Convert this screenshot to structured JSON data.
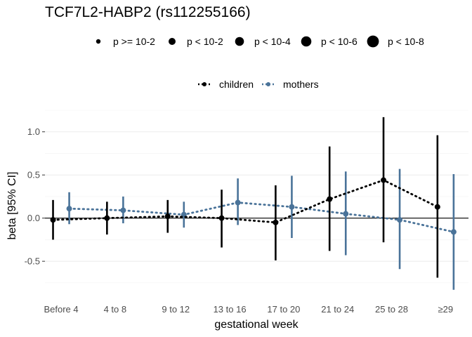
{
  "chart_data": {
    "type": "scatter",
    "title": "TCF7L2-HABP2 (rs112255166)",
    "xlabel": "gestational week",
    "ylabel": "beta [95% CI]",
    "categories": [
      "Before 4",
      "4 to 8",
      "9 to 12",
      "13 to 16",
      "17 to 20",
      "21 to 24",
      "25 to 28",
      "≥29"
    ],
    "x_positions": [
      2,
      6,
      10.5,
      14.5,
      18.5,
      22.5,
      26.5,
      30.5
    ],
    "xlim": [
      0.8,
      32.2
    ],
    "ylim": [
      -0.93,
      1.25
    ],
    "yticks": [
      -0.5,
      0.0,
      0.5,
      1.0
    ],
    "ytick_labels": [
      "-0.5",
      "0.0",
      "0.5",
      "1.0"
    ],
    "grid": true,
    "zero_line": true,
    "size_legend": {
      "labels": [
        "p >= 10-2",
        "p < 10-2",
        "p < 10-4",
        "p < 10-6",
        "p < 10-8"
      ],
      "placement": "top"
    },
    "series_legend": {
      "placement": "top"
    },
    "series": [
      {
        "name": "children",
        "color": "#000000",
        "line": "dotted",
        "beta": [
          -0.02,
          0.0,
          0.02,
          0.0,
          -0.05,
          0.22,
          0.44,
          0.13
        ],
        "lower": [
          -0.25,
          -0.19,
          -0.17,
          -0.34,
          -0.49,
          -0.38,
          -0.28,
          -0.69
        ],
        "upper": [
          0.21,
          0.19,
          0.21,
          0.33,
          0.38,
          0.83,
          1.17,
          0.96
        ]
      },
      {
        "name": "mothers",
        "color": "#4a7399",
        "line": "dotted",
        "beta": [
          0.11,
          0.09,
          0.04,
          0.18,
          0.13,
          0.05,
          -0.02,
          -0.16
        ],
        "lower": [
          -0.07,
          -0.06,
          -0.11,
          -0.08,
          -0.23,
          -0.43,
          -0.59,
          -0.83
        ],
        "upper": [
          0.3,
          0.25,
          0.19,
          0.46,
          0.49,
          0.54,
          0.57,
          0.51
        ]
      }
    ]
  }
}
